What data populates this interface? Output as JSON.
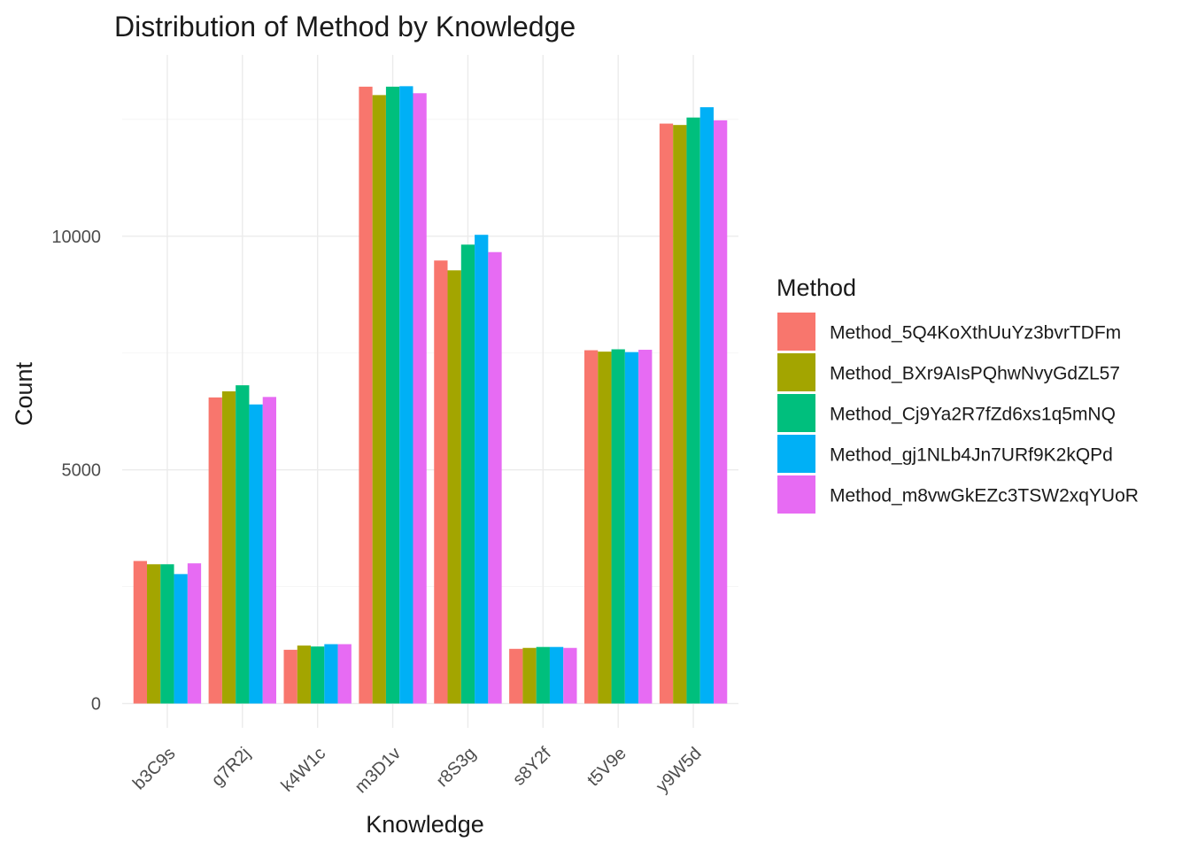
{
  "chart_data": {
    "type": "bar",
    "title": "Distribution of Method by Knowledge",
    "xlabel": "Knowledge",
    "ylabel": "Count",
    "categories": [
      "b3C9s",
      "g7R2j",
      "k4W1c",
      "m3D1v",
      "r8S3g",
      "s8Y2f",
      "t5V9e",
      "y9W5d"
    ],
    "ylim": [
      -520,
      13880
    ],
    "yticks": [
      0,
      5000,
      10000
    ],
    "grid": true,
    "legend": {
      "title": "Method",
      "position": "right"
    },
    "series": [
      {
        "name": "Method_5Q4KoXthUuYz3bvrTDFm",
        "color": "#F8766D",
        "values": [
          3050,
          6550,
          1150,
          13200,
          9480,
          1170,
          7560,
          12410
        ]
      },
      {
        "name": "Method_BXr9AIsPQhwNvyGdZL57",
        "color": "#A3A500",
        "values": [
          2980,
          6680,
          1240,
          13020,
          9270,
          1190,
          7530,
          12380
        ]
      },
      {
        "name": "Method_Cj9Ya2R7fZd6xs1q5mNQ",
        "color": "#00BF7D",
        "values": [
          2980,
          6810,
          1220,
          13200,
          9820,
          1210,
          7580,
          12540
        ]
      },
      {
        "name": "Method_gj1NLb4Jn7URf9K2kQPd",
        "color": "#00B0F6",
        "values": [
          2770,
          6400,
          1270,
          13210,
          10030,
          1210,
          7520,
          12760
        ]
      },
      {
        "name": "Method_m8vwGkEZc3TSW2xqYUoR",
        "color": "#E76BF3",
        "values": [
          3000,
          6560,
          1270,
          13060,
          9660,
          1190,
          7570,
          12480
        ]
      }
    ]
  }
}
